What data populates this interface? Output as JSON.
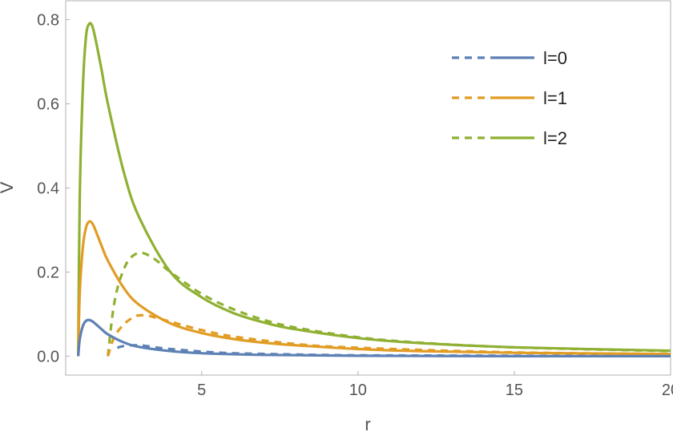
{
  "chart_data": {
    "type": "line",
    "title": "",
    "xlabel": "r",
    "ylabel": "V",
    "xlim": [
      0.65,
      20.0
    ],
    "ylim": [
      -0.045,
      0.845
    ],
    "x_ticks": [
      5,
      10,
      15,
      20
    ],
    "x_tick_labels": [
      "5",
      "10",
      "15",
      "20"
    ],
    "y_ticks": [
      0.0,
      0.2,
      0.4,
      0.6,
      0.8
    ],
    "y_tick_labels": [
      "0.0",
      "0.2",
      "0.4",
      "0.6",
      "0.8"
    ],
    "grid": false,
    "legend_position": "top-right",
    "series": [
      {
        "name": "l=0",
        "color": "#5E81B5",
        "style": "solid",
        "x": [
          1.05,
          1.1,
          1.2,
          1.3,
          1.4,
          1.5,
          1.6,
          1.8,
          2.0,
          2.5,
          3.0,
          4.0,
          5.0,
          7.0,
          10.0,
          15.0,
          20.0
        ],
        "y": [
          0.0,
          0.04,
          0.072,
          0.084,
          0.086,
          0.083,
          0.077,
          0.064,
          0.052,
          0.033,
          0.022,
          0.012,
          0.007,
          0.003,
          0.001,
          0.0,
          0.0
        ]
      },
      {
        "name": "l=0",
        "color": "#5E81B5",
        "style": "dashed",
        "x": [
          2.3,
          2.5,
          3.0,
          3.5,
          4.0,
          5.0,
          6.0,
          8.0,
          10.0,
          15.0,
          20.0
        ],
        "y": [
          0.02,
          0.024,
          0.026,
          0.021,
          0.017,
          0.011,
          0.007,
          0.004,
          0.002,
          0.001,
          0.0
        ]
      },
      {
        "name": "l=1",
        "color": "#E19C24",
        "style": "solid",
        "x": [
          1.05,
          1.1,
          1.2,
          1.3,
          1.4,
          1.5,
          1.6,
          1.8,
          2.0,
          2.5,
          3.0,
          4.0,
          5.0,
          6.0,
          7.0,
          8.0,
          10.0,
          12.0,
          15.0,
          20.0
        ],
        "y": [
          0.0,
          0.15,
          0.26,
          0.306,
          0.32,
          0.316,
          0.3,
          0.262,
          0.227,
          0.163,
          0.122,
          0.078,
          0.055,
          0.041,
          0.032,
          0.026,
          0.017,
          0.012,
          0.008,
          0.005
        ]
      },
      {
        "name": "l=1",
        "color": "#E19C24",
        "style": "dashed",
        "x": [
          2.0,
          2.2,
          2.5,
          2.8,
          3.0,
          3.3,
          3.6,
          4.0,
          5.0,
          6.0,
          8.0,
          10.0,
          15.0,
          20.0
        ],
        "y": [
          0.0,
          0.045,
          0.075,
          0.092,
          0.097,
          0.096,
          0.09,
          0.082,
          0.062,
          0.047,
          0.029,
          0.02,
          0.009,
          0.005
        ]
      },
      {
        "name": "l=2",
        "color": "#8FB032",
        "style": "solid",
        "x": [
          1.05,
          1.1,
          1.2,
          1.3,
          1.4,
          1.5,
          1.6,
          1.8,
          2.0,
          2.5,
          3.0,
          4.0,
          5.0,
          6.0,
          7.0,
          8.0,
          10.0,
          12.0,
          15.0,
          20.0
        ],
        "y": [
          0.0,
          0.38,
          0.64,
          0.76,
          0.79,
          0.785,
          0.755,
          0.68,
          0.6,
          0.44,
          0.33,
          0.2,
          0.14,
          0.103,
          0.08,
          0.064,
          0.043,
          0.031,
          0.021,
          0.013
        ]
      },
      {
        "name": "l=2",
        "color": "#8FB032",
        "style": "dashed",
        "x": [
          2.0,
          2.15,
          2.3,
          2.5,
          2.7,
          3.0,
          3.3,
          3.6,
          4.0,
          5.0,
          6.0,
          7.0,
          8.0,
          10.0,
          12.0,
          15.0,
          20.0
        ],
        "y": [
          0.0,
          0.1,
          0.16,
          0.205,
          0.232,
          0.246,
          0.24,
          0.225,
          0.2,
          0.148,
          0.112,
          0.086,
          0.068,
          0.045,
          0.032,
          0.021,
          0.012
        ]
      }
    ],
    "legend": [
      {
        "label": "l=0",
        "color": "#5E81B5"
      },
      {
        "label": "l=1",
        "color": "#E19C24"
      },
      {
        "label": "l=2",
        "color": "#8FB032"
      }
    ]
  }
}
